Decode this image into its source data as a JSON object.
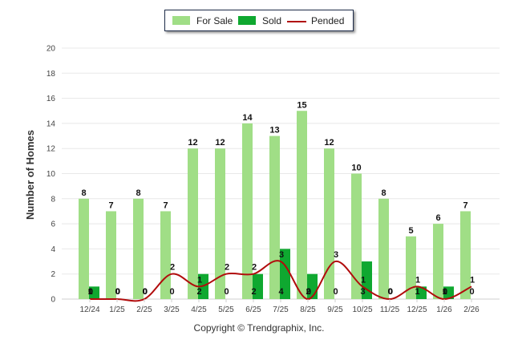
{
  "chart_data": {
    "type": "bar",
    "ylabel": "Number of Homes",
    "ylim": [
      0,
      20
    ],
    "yticks": [
      0,
      2,
      4,
      6,
      8,
      10,
      12,
      14,
      16,
      18,
      20
    ],
    "grid": true,
    "legend_position": "top-center",
    "categories": [
      "12/24",
      "1/25",
      "2/25",
      "3/25",
      "4/25",
      "5/25",
      "6/25",
      "7/25",
      "8/25",
      "9/25",
      "10/25",
      "11/25",
      "12/25",
      "1/26",
      "2/26"
    ],
    "series": [
      {
        "name": "For Sale",
        "kind": "bar",
        "color": "#a0de86",
        "values": [
          8,
          7,
          8,
          7,
          12,
          12,
          14,
          13,
          15,
          12,
          10,
          8,
          5,
          6,
          7
        ]
      },
      {
        "name": "Sold",
        "kind": "bar",
        "color": "#0fa830",
        "values": [
          1,
          0,
          0,
          0,
          2,
          0,
          2,
          4,
          2,
          0,
          3,
          0,
          1,
          1,
          0
        ]
      },
      {
        "name": "Pended",
        "kind": "line",
        "color": "#b10c0c",
        "values": [
          0,
          0,
          0,
          2,
          1,
          2,
          2,
          3,
          0,
          3,
          1,
          0,
          1,
          0,
          1
        ]
      }
    ]
  },
  "footer": {
    "copyright": "Copyright © Trendgraphix, Inc."
  }
}
